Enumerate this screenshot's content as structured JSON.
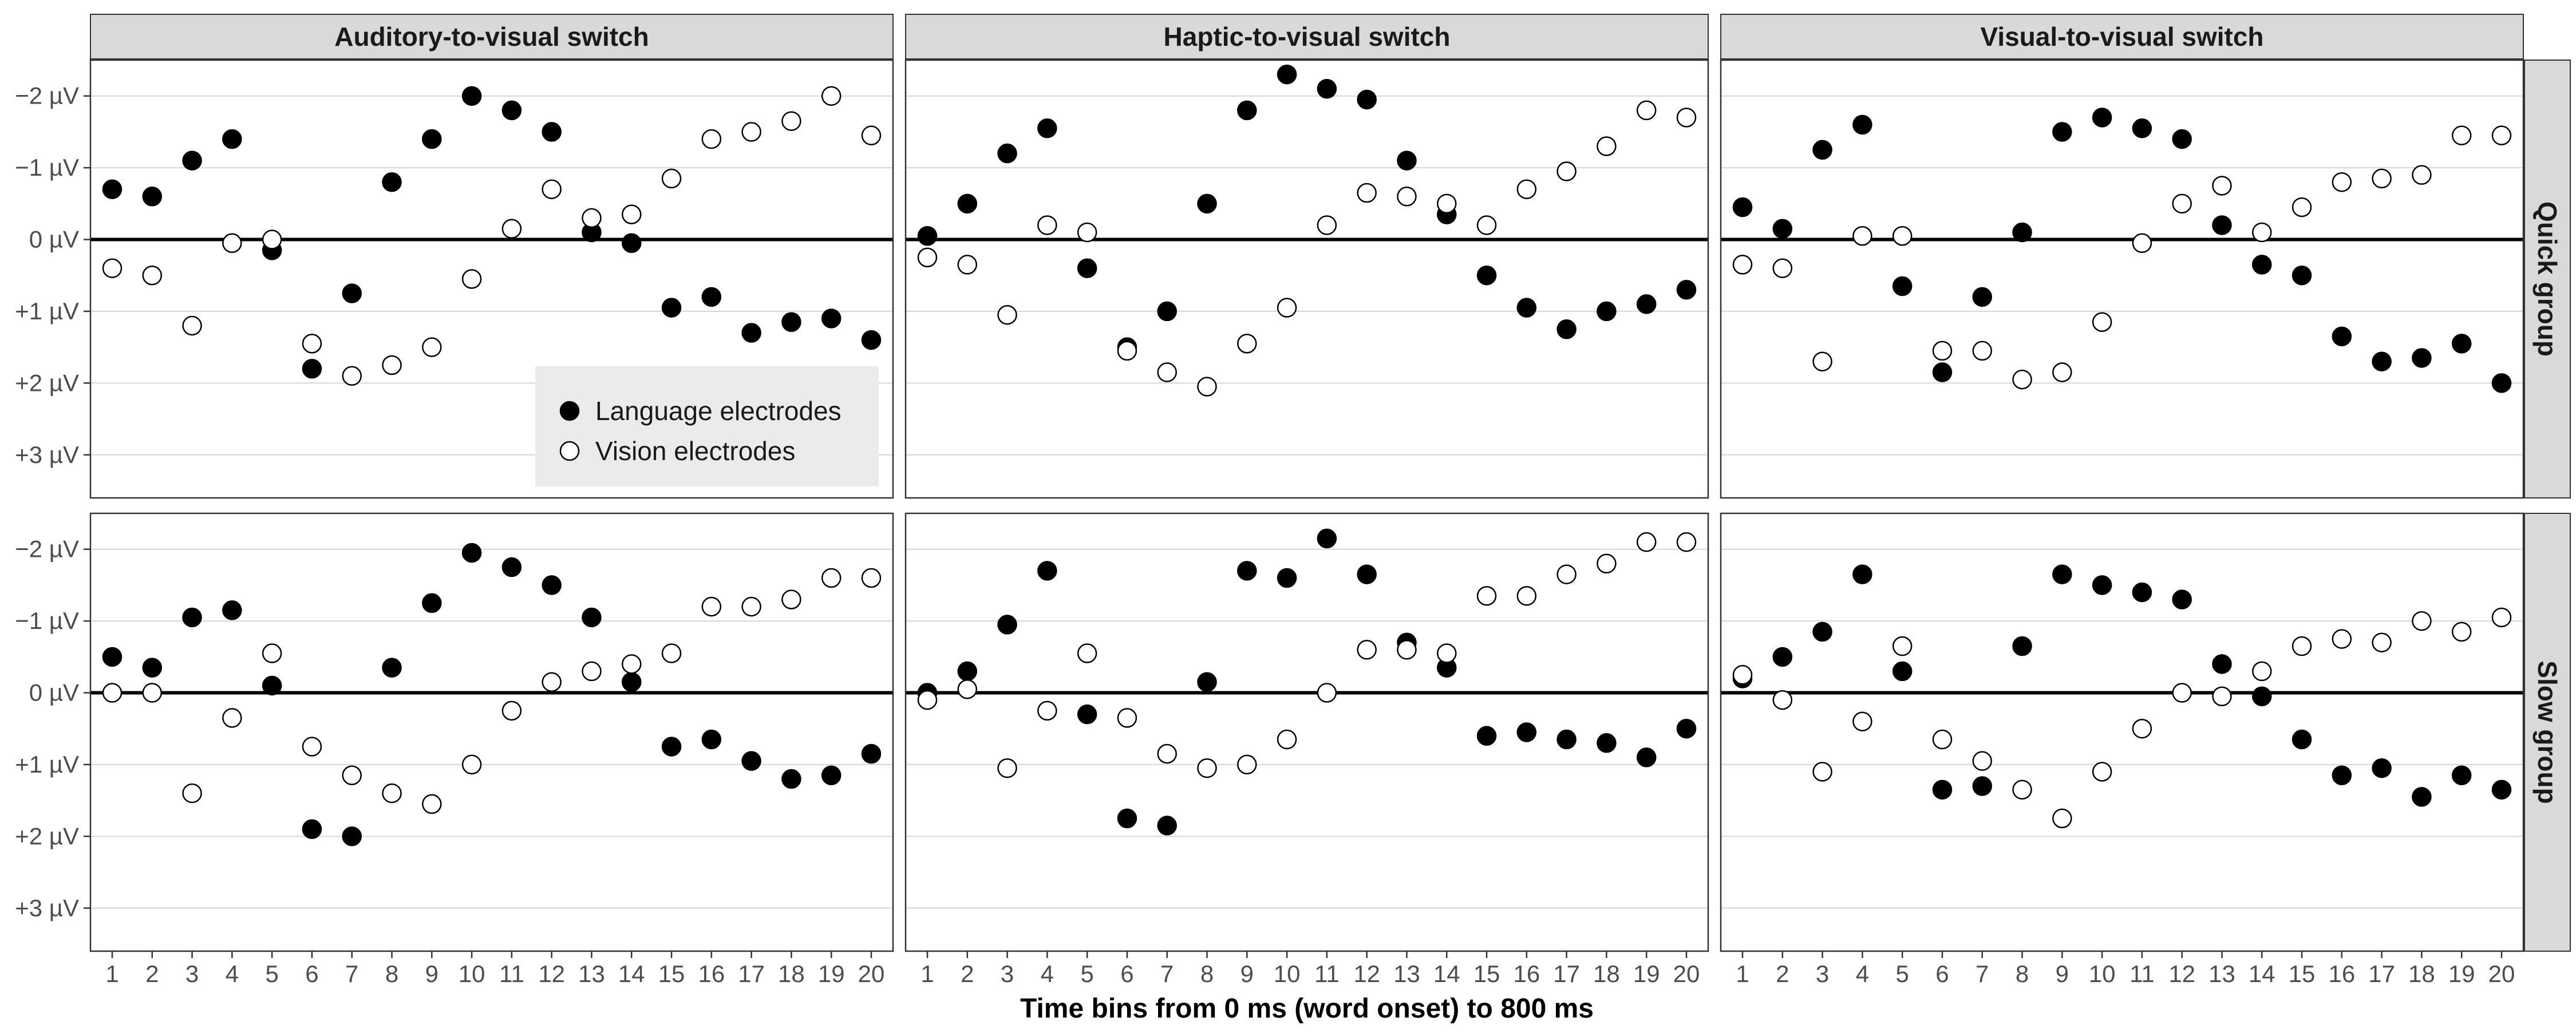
{
  "chart_data": {
    "type": "scatter",
    "xlabel": "Time bins from 0 ms (word onset) to 800 ms",
    "ylabel": "",
    "columns": [
      "Auditory-to-visual switch",
      "Haptic-to-visual switch",
      "Visual-to-visual switch"
    ],
    "rows": [
      "Quick group",
      "Slow group"
    ],
    "x": [
      1,
      2,
      3,
      4,
      5,
      6,
      7,
      8,
      9,
      10,
      11,
      12,
      13,
      14,
      15,
      16,
      17,
      18,
      19,
      20
    ],
    "x_tick_labels": [
      "1",
      "2",
      "3",
      "4",
      "5",
      "6",
      "7",
      "8",
      "9",
      "10",
      "11",
      "12",
      "13",
      "14",
      "15",
      "16",
      "17",
      "18",
      "19",
      "20"
    ],
    "y_axis_inverted": true,
    "ylim": [
      -2.5,
      3.6
    ],
    "y_ticks": [
      -2,
      -1,
      0,
      1,
      2,
      3
    ],
    "y_tick_labels": [
      "−2 µV",
      "−1 µV",
      "0 µV",
      "+1 µV",
      "+2 µV",
      "+3 µV"
    ],
    "grid": true,
    "zero_line": true,
    "legend": {
      "placement": "inside bottom-right of top-left panel",
      "entries": [
        {
          "label": "Language electrodes",
          "marker": "filled-circle"
        },
        {
          "label": "Vision electrodes",
          "marker": "open-circle"
        }
      ]
    },
    "panels": [
      {
        "row": "Quick group",
        "column": "Auditory-to-visual switch",
        "series": [
          {
            "name": "Language electrodes",
            "values": [
              -0.7,
              -0.6,
              -1.1,
              -1.4,
              0.15,
              1.8,
              0.75,
              -0.8,
              -1.4,
              -2.0,
              -1.8,
              -1.5,
              -0.1,
              0.05,
              0.95,
              0.8,
              1.3,
              1.15,
              1.1,
              1.4
            ]
          },
          {
            "name": "Vision electrodes",
            "values": [
              0.4,
              0.5,
              1.2,
              0.05,
              0.0,
              1.45,
              1.9,
              1.75,
              1.5,
              0.55,
              -0.15,
              -0.7,
              -0.3,
              -0.35,
              -0.85,
              -1.4,
              -1.5,
              -1.65,
              -2.0,
              -1.45
            ]
          }
        ]
      },
      {
        "row": "Quick group",
        "column": "Haptic-to-visual switch",
        "series": [
          {
            "name": "Language electrodes",
            "values": [
              -0.05,
              -0.5,
              -1.2,
              -1.55,
              0.4,
              1.5,
              1.0,
              -0.5,
              -1.8,
              -2.3,
              -2.1,
              -1.95,
              -1.1,
              -0.35,
              0.5,
              0.95,
              1.25,
              1.0,
              0.9,
              0.7
            ]
          },
          {
            "name": "Vision electrodes",
            "values": [
              0.25,
              0.35,
              1.05,
              -0.2,
              -0.1,
              1.55,
              1.85,
              2.05,
              1.45,
              0.95,
              -0.2,
              -0.65,
              -0.6,
              -0.5,
              -0.2,
              -0.7,
              -0.95,
              -1.3,
              -1.8,
              -1.7
            ]
          }
        ]
      },
      {
        "row": "Quick group",
        "column": "Visual-to-visual switch",
        "series": [
          {
            "name": "Language electrodes",
            "values": [
              -0.45,
              -0.15,
              -1.25,
              -1.6,
              0.65,
              1.85,
              0.8,
              -0.1,
              -1.5,
              -1.7,
              -1.55,
              -1.4,
              -0.2,
              0.35,
              0.5,
              1.35,
              1.7,
              1.65,
              1.45,
              2.0
            ]
          },
          {
            "name": "Vision electrodes",
            "values": [
              0.35,
              0.4,
              1.7,
              -0.05,
              -0.05,
              1.55,
              1.55,
              1.95,
              1.85,
              1.15,
              0.05,
              -0.5,
              -0.75,
              -0.1,
              -0.45,
              -0.8,
              -0.85,
              -0.9,
              -1.45,
              -1.45
            ]
          }
        ]
      },
      {
        "row": "Slow group",
        "column": "Auditory-to-visual switch",
        "series": [
          {
            "name": "Language electrodes",
            "values": [
              -0.5,
              -0.35,
              -1.05,
              -1.15,
              -0.1,
              1.9,
              2.0,
              -0.35,
              -1.25,
              -1.95,
              -1.75,
              -1.5,
              -1.05,
              -0.15,
              0.75,
              0.65,
              0.95,
              1.2,
              1.15,
              0.85
            ]
          },
          {
            "name": "Vision electrodes",
            "values": [
              0.0,
              0.0,
              1.4,
              0.35,
              -0.55,
              0.75,
              1.15,
              1.4,
              1.55,
              1.0,
              0.25,
              -0.15,
              -0.3,
              -0.4,
              -0.55,
              -1.2,
              -1.2,
              -1.3,
              -1.6,
              -1.6
            ]
          }
        ]
      },
      {
        "row": "Slow group",
        "column": "Haptic-to-visual switch",
        "series": [
          {
            "name": "Language electrodes",
            "values": [
              0.0,
              -0.3,
              -0.95,
              -1.7,
              0.3,
              1.75,
              1.85,
              -0.15,
              -1.7,
              -1.6,
              -2.15,
              -1.65,
              -0.7,
              -0.35,
              0.6,
              0.55,
              0.65,
              0.7,
              0.9,
              0.5
            ]
          },
          {
            "name": "Vision electrodes",
            "values": [
              0.1,
              -0.05,
              1.05,
              0.25,
              -0.55,
              0.35,
              0.85,
              1.05,
              1.0,
              0.65,
              0.0,
              -0.6,
              -0.6,
              -0.55,
              -1.35,
              -1.35,
              -1.65,
              -1.8,
              -2.1,
              -2.1
            ]
          }
        ]
      },
      {
        "row": "Slow group",
        "column": "Visual-to-visual switch",
        "series": [
          {
            "name": "Language electrodes",
            "values": [
              -0.2,
              -0.5,
              -0.85,
              -1.65,
              -0.3,
              1.35,
              1.3,
              -0.65,
              -1.65,
              -1.5,
              -1.4,
              -1.3,
              -0.4,
              0.05,
              0.65,
              1.15,
              1.05,
              1.45,
              1.15,
              1.35
            ]
          },
          {
            "name": "Vision electrodes",
            "values": [
              -0.25,
              0.1,
              1.1,
              0.4,
              -0.65,
              0.65,
              0.95,
              1.35,
              1.75,
              1.1,
              0.5,
              0.0,
              0.05,
              -0.3,
              -0.65,
              -0.75,
              -0.7,
              -1.0,
              -0.85,
              -1.05
            ]
          }
        ]
      }
    ]
  }
}
